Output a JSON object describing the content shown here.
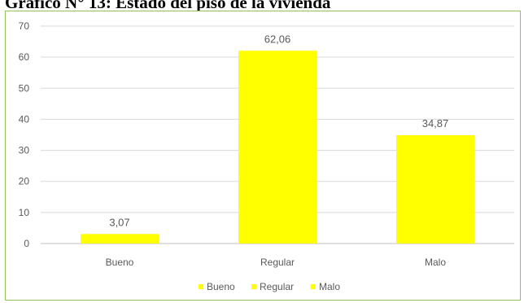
{
  "heading": "Gráfico N° 13: Estado del piso de la vivienda",
  "chart_data": {
    "type": "bar",
    "categories": [
      "Bueno",
      "Regular",
      "Malo"
    ],
    "values": [
      3.07,
      62.06,
      34.87
    ],
    "data_labels": [
      "3,07",
      "62,06",
      "34,87"
    ],
    "ylim": [
      0,
      70
    ],
    "yticks": [
      0,
      10,
      20,
      30,
      40,
      50,
      60,
      70
    ],
    "grid": true,
    "legend": {
      "placement": "bottom",
      "entries": [
        "Bueno",
        "Regular",
        "Malo"
      ]
    },
    "colors": {
      "bar": "#ffff00",
      "grid": "#d9d9d9",
      "axis": "#bfbfbf",
      "text": "#595959"
    }
  }
}
